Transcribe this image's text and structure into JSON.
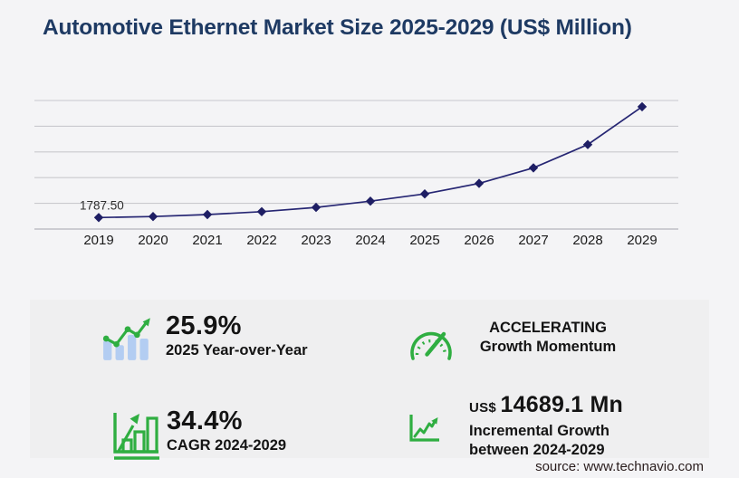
{
  "page": {
    "title": "Automotive Ethernet Market Size 2025-2029 (US$ Million)",
    "source": "source: www.technavio.com"
  },
  "colors": {
    "page_bg": "#f4f4f6",
    "panel_bg": "#efeff0",
    "title_navy": "#1e3a63",
    "line_navy": "#262673",
    "marker_navy": "#1e1e64",
    "gridline": "#c9c9ce",
    "axis_line": "#bfbfc5",
    "accent_green": "#2fae41",
    "bar_blue": "#b3cdf2",
    "text_dark": "#141414",
    "tick_text": "#1a1a1a",
    "point_label_text": "#2e2e2e",
    "source_color": "#2a1d1d"
  },
  "chart_data": {
    "type": "line",
    "title": "Automotive Ethernet Market Size 2025-2029 (US$ Million)",
    "x_labels": [
      "2019",
      "2020",
      "2021",
      "2022",
      "2023",
      "2024",
      "2025",
      "2026",
      "2027",
      "2028",
      "2029"
    ],
    "series": [
      {
        "name": "Market size (US$ Million)",
        "values": [
          1787.5,
          1939,
          2255,
          2711,
          3372,
          4339.1,
          5462.9,
          7097,
          9516,
          13140,
          19028.2
        ]
      }
    ],
    "point_label": {
      "x": "2019",
      "text": "1787.50"
    },
    "note": "Only the 2019 value (1787.50) is labeled on the chart; remaining values estimated from plotted points and the 25.9% 2025 YoY, 34.4% CAGR 2024-2029 and US$ 14689.1 Mn incremental growth figures.",
    "ylim": [
      0,
      20000
    ],
    "grid_step": 4000,
    "grid": "horizontal",
    "marker": "diamond",
    "legend": "none"
  },
  "stats": {
    "yoy": {
      "icon": "bar-chart-trend-icon",
      "value": "25.9%",
      "label": "2025 Year-over-Year"
    },
    "momentum": {
      "icon": "speedometer-icon",
      "line1": "ACCELERATING",
      "line2": "Growth Momentum"
    },
    "cagr": {
      "icon": "growth-bars-icon",
      "value": "34.4%",
      "label": "CAGR 2024-2029"
    },
    "incremental": {
      "icon": "trend-line-icon",
      "currency": "US$",
      "value": "14689.1 Mn",
      "label_line1": "Incremental Growth",
      "label_line2": "between 2024-2029"
    }
  }
}
